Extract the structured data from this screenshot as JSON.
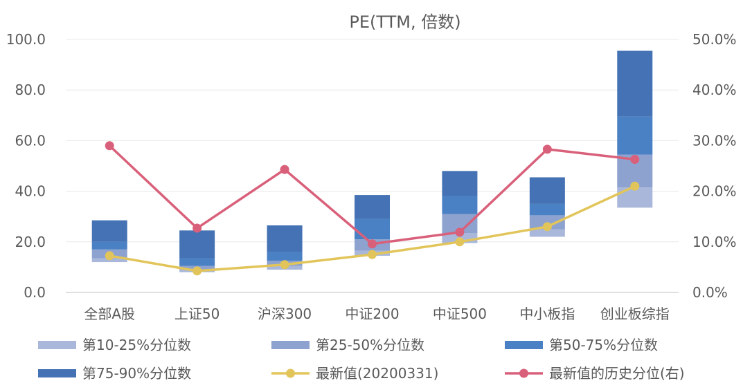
{
  "chart_data": {
    "type": "bar",
    "title": "PE(TTM, 倍数)",
    "categories": [
      "全部A股",
      "上证50",
      "沪深300",
      "中证200",
      "中证500",
      "中小板指",
      "创业板综指"
    ],
    "ylim": [
      0,
      100
    ],
    "y2lim": [
      0,
      0.5
    ],
    "yticks": [
      "0.0",
      "20.0",
      "40.0",
      "60.0",
      "80.0",
      "100.0"
    ],
    "y2ticks": [
      "0.0%",
      "10.0%",
      "20.0%",
      "30.0%",
      "40.0%",
      "50.0%"
    ],
    "bands": [
      {
        "name": "第10-25%分位数",
        "color": "#a9b8da",
        "low": [
          12.0,
          8.0,
          9.0,
          14.5,
          19.5,
          22.0,
          33.5
        ],
        "high": [
          13.5,
          9.0,
          10.5,
          16.5,
          23.5,
          25.0,
          41.5
        ]
      },
      {
        "name": "第25-50%分位数",
        "color": "#8da2cf",
        "low": [
          13.5,
          9.0,
          10.5,
          16.5,
          23.5,
          25.0,
          41.5
        ],
        "high": [
          17.0,
          10.5,
          12.5,
          21.0,
          31.0,
          30.5,
          54.5
        ]
      },
      {
        "name": "第50-75%分位数",
        "color": "#4a80c4",
        "low": [
          17.0,
          10.5,
          12.5,
          21.0,
          31.0,
          30.5,
          54.5
        ],
        "high": [
          20.0,
          13.5,
          16.0,
          29.0,
          38.0,
          35.0,
          69.5
        ]
      },
      {
        "name": "第75-90%分位数",
        "color": "#4472b4",
        "low": [
          20.0,
          13.5,
          16.0,
          29.0,
          38.0,
          35.0,
          69.5
        ],
        "high": [
          28.5,
          24.5,
          26.5,
          38.5,
          48.0,
          45.5,
          95.5
        ]
      }
    ],
    "series": [
      {
        "name": "最新值(20200331)",
        "axis": "left",
        "color": "#e2c55a",
        "values": [
          14.5,
          8.5,
          11.0,
          15.0,
          20.0,
          26.0,
          42.0
        ]
      },
      {
        "name": "最新值的历史分位(右)",
        "axis": "right",
        "color": "#d9607a",
        "values": [
          0.29,
          0.127,
          0.243,
          0.096,
          0.119,
          0.283,
          0.263
        ]
      }
    ],
    "legend_position": "bottom"
  }
}
